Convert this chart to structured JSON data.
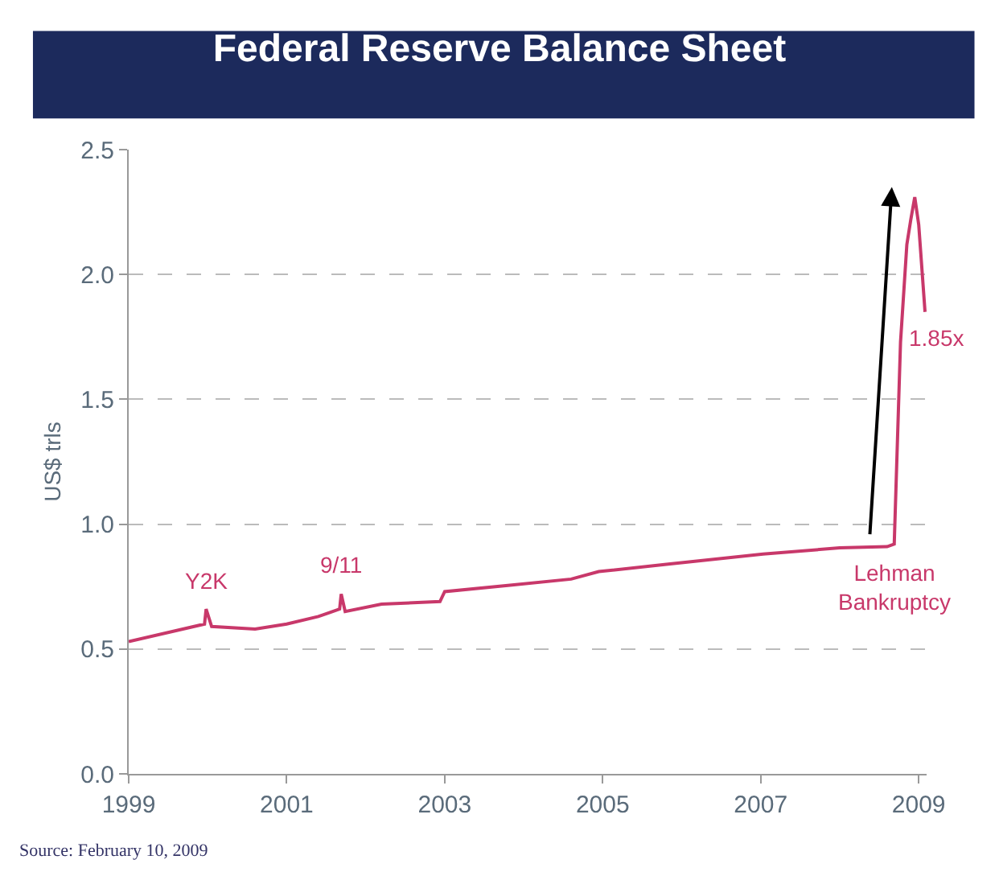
{
  "chart_data": {
    "type": "line",
    "title": "Federal Reserve Balance Sheet",
    "ylabel": "US$ trls",
    "x": [
      1999.0,
      1999.96,
      1999.98,
      2000.05,
      2000.6,
      2001.0,
      2001.4,
      2001.67,
      2001.69,
      2001.74,
      2002.2,
      2002.94,
      2003.0,
      2003.8,
      2004.6,
      2004.95,
      2005.83,
      2007.03,
      2008.0,
      2008.6,
      2008.69,
      2008.77,
      2008.85,
      2008.9,
      2008.95,
      2009.0,
      2009.08
    ],
    "series": [
      {
        "color": "#c8386a",
        "values": [
          0.53,
          0.6,
          0.66,
          0.59,
          0.58,
          0.6,
          0.63,
          0.66,
          0.72,
          0.65,
          0.68,
          0.69,
          0.73,
          0.755,
          0.78,
          0.81,
          0.84,
          0.88,
          0.905,
          0.91,
          0.92,
          1.73,
          2.12,
          2.22,
          2.31,
          2.2,
          1.85
        ]
      }
    ],
    "xlim": [
      1999,
      2009.1
    ],
    "xticks": [
      1999,
      2001,
      2003,
      2005,
      2007,
      2009
    ],
    "ylim": [
      0,
      2.5
    ],
    "yticks": [
      {
        "value": 0,
        "label": "0.0"
      },
      {
        "value": 0.5,
        "label": "0.5"
      },
      {
        "value": 1,
        "label": "1.0"
      },
      {
        "value": 1.5,
        "label": "1.5"
      },
      {
        "value": 2,
        "label": "2.0"
      },
      {
        "value": 2.5,
        "label": "2.5"
      }
    ],
    "grid": "y",
    "marker": "none",
    "line_style": "solid",
    "annotations": [
      {
        "text": "Y2K",
        "x": 1999.98,
        "y": 0.66
      },
      {
        "text": "9/11",
        "x": 2001.69,
        "y": 0.72
      },
      {
        "text": "Lehman\nBankruptcy",
        "x": 2008.69,
        "y": 0.92
      },
      {
        "text": "1.85x",
        "x": 2009.08,
        "y": 1.85
      },
      "Source: February 10, 2009"
    ]
  }
}
